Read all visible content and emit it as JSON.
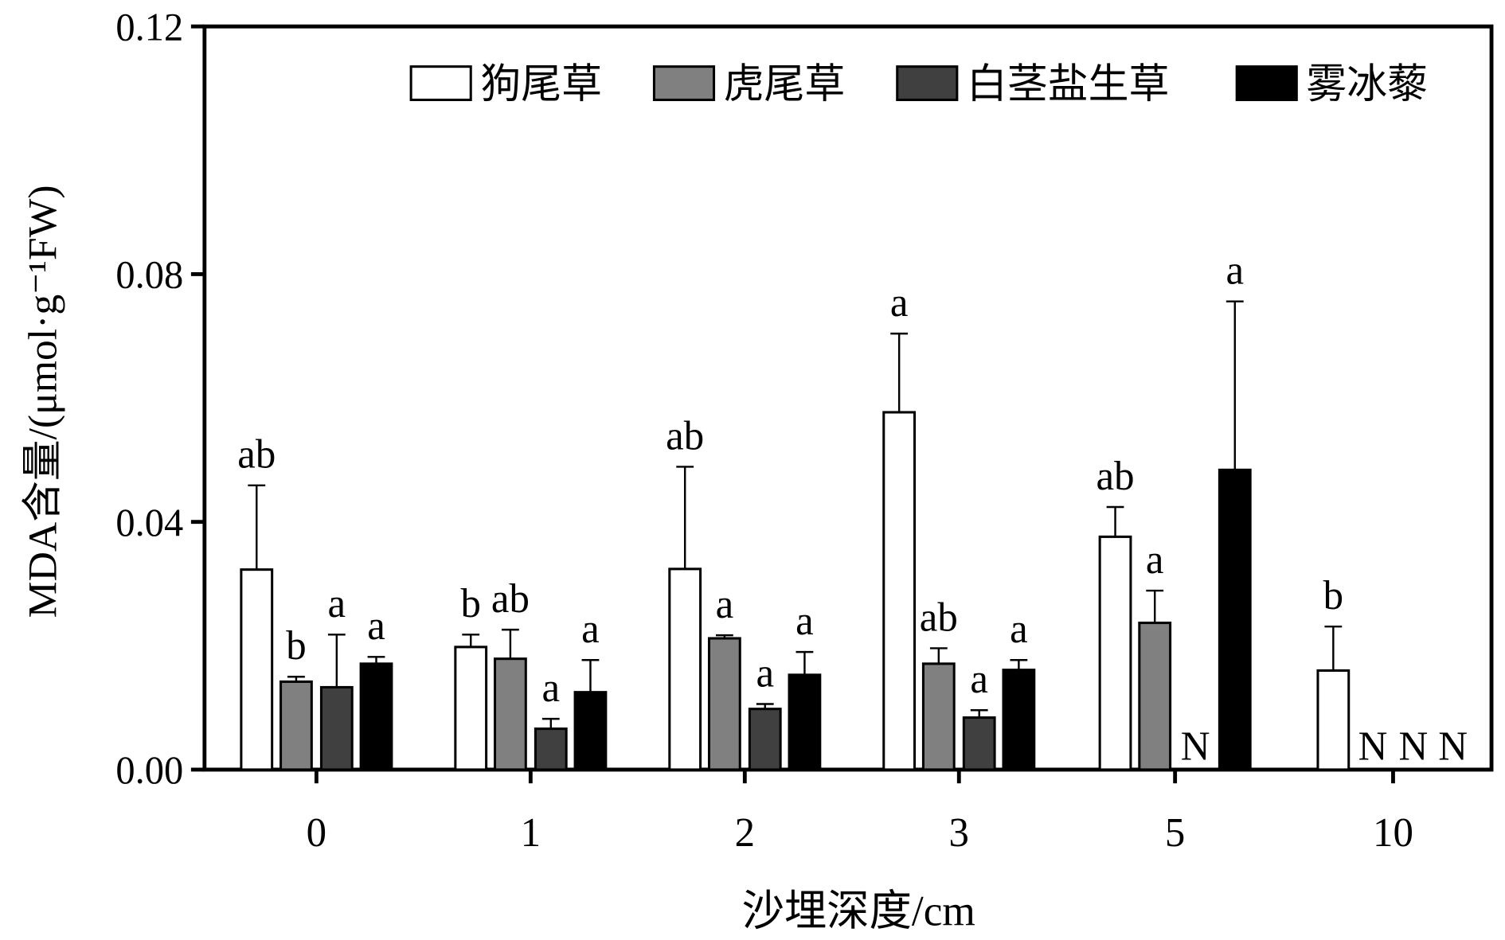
{
  "chart_data": {
    "type": "bar",
    "title": "",
    "xlabel": "沙埋深度/cm",
    "ylabel": "MDA含量/(μmol·g⁻¹FW)",
    "ylim": [
      0,
      0.12
    ],
    "yticks": [
      "0.00",
      "0.04",
      "0.08",
      "0.12"
    ],
    "ytick_values": [
      0,
      0.04,
      0.08,
      0.12
    ],
    "categories": [
      "0",
      "1",
      "2",
      "3",
      "5",
      "10"
    ],
    "legend_position": "top-right",
    "series": [
      {
        "name": "狗尾草",
        "color": "#ffffff",
        "values": [
          0.0323,
          0.0198,
          0.0324,
          0.0577,
          0.0376,
          0.016
        ],
        "errors": [
          0.0136,
          0.002,
          0.0165,
          0.0127,
          0.0048,
          0.0071
        ],
        "labels": [
          "ab",
          "b",
          "ab",
          "a",
          "ab",
          "b"
        ]
      },
      {
        "name": "虎尾草",
        "color": "#808080",
        "values": [
          0.0142,
          0.0179,
          0.0212,
          0.0171,
          0.0237,
          null
        ],
        "errors": [
          0.0008,
          0.0047,
          0.0005,
          0.0025,
          0.0052,
          null
        ],
        "labels": [
          "b",
          "ab",
          "a",
          "ab",
          "a",
          "N"
        ]
      },
      {
        "name": "白茎盐生草",
        "color": "#404040",
        "values": [
          0.0133,
          0.0066,
          0.0098,
          0.0084,
          null,
          null
        ],
        "errors": [
          0.0085,
          0.0016,
          0.0008,
          0.0012,
          null,
          null
        ],
        "labels": [
          "a",
          "a",
          "a",
          "a",
          "N",
          "N"
        ]
      },
      {
        "name": "雾冰藜",
        "color": "#000000",
        "values": [
          0.0171,
          0.0125,
          0.0153,
          0.0161,
          0.0484,
          null
        ],
        "errors": [
          0.0011,
          0.0052,
          0.0037,
          0.0016,
          0.0272,
          null
        ],
        "labels": [
          "a",
          "a",
          "a",
          "a",
          "a",
          "N"
        ]
      }
    ]
  }
}
